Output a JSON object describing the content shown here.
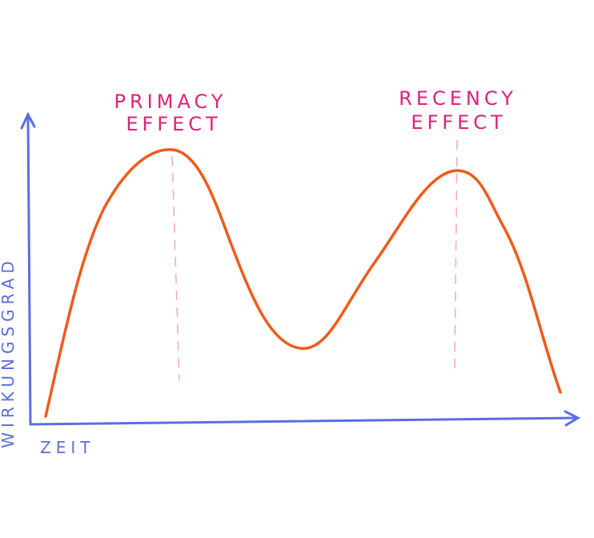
{
  "annotations": [
    {
      "lines": [
        "PRIMACY",
        "EFFECT"
      ]
    },
    {
      "lines": [
        "RECENCY",
        "EFFECT"
      ]
    }
  ],
  "y_axis": {
    "label": "WIRKUNGSGRAD"
  },
  "x_axis": {
    "label": "ZEIT"
  }
}
